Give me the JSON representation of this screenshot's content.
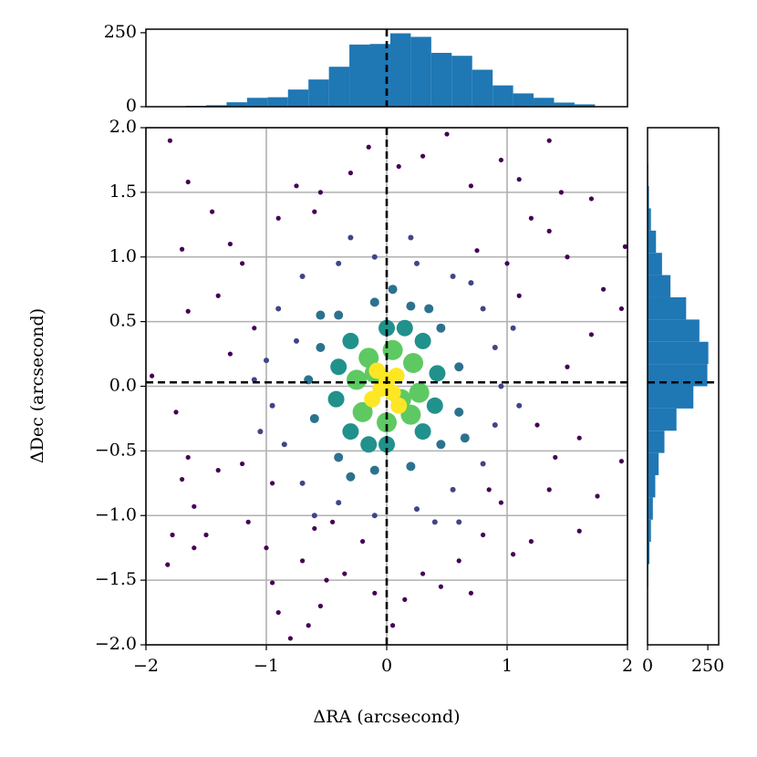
{
  "chart_data": [
    {
      "type": "scatter",
      "xlabel": "ΔRA (arcsecond)",
      "ylabel": "ΔDec (arcsecond)",
      "xlim": [
        -2,
        2
      ],
      "ylim": [
        -2,
        2
      ],
      "grid": true,
      "vline": 0.0,
      "hline": 0.03,
      "xticks": [
        {
          "value": -2,
          "label": "−2"
        },
        {
          "value": -1,
          "label": "−1"
        },
        0,
        1,
        2
      ],
      "yticks": [
        {
          "value": -2,
          "label": "−2.0"
        },
        {
          "value": -1.5,
          "label": "−1.5"
        },
        {
          "value": -1,
          "label": "−1.0"
        },
        {
          "value": -0.5,
          "label": "−0.5"
        },
        {
          "value": 0,
          "label": "0.0"
        },
        0.5,
        {
          "value": 1,
          "label": "1.0"
        },
        1.5,
        {
          "value": 2,
          "label": "2.0"
        }
      ],
      "series": [
        {
          "color": "#440154",
          "size": 2.6,
          "x": [
            -1.8,
            -1.65,
            -1.7,
            -1.45,
            -1.3,
            -1.2,
            -1.4,
            -1.65,
            -1.95,
            -1.75,
            -1.65,
            -1.7,
            -1.6,
            -1.78,
            -1.82,
            -1.6,
            -1.4,
            -1.2,
            -1.15,
            -1.0,
            -0.95,
            -0.9,
            -0.8,
            -0.65,
            -0.55,
            -0.7,
            -0.6,
            -0.5,
            -0.35,
            -0.2,
            -0.1,
            0.05,
            0.15,
            0.3,
            0.45,
            0.6,
            0.7,
            0.8,
            0.95,
            1.05,
            1.2,
            1.35,
            1.6,
            1.75,
            1.95,
            1.6,
            1.4,
            1.25,
            1.5,
            1.7,
            1.95,
            1.8,
            1.5,
            1.35,
            1.7,
            1.45,
            1.35,
            1.1,
            1.2,
            0.95,
            0.7,
            0.5,
            0.3,
            0.1,
            -0.15,
            -0.3,
            -0.55,
            -0.75,
            -0.9,
            -0.6,
            1.98,
            -1.5,
            1.0,
            -1.3,
            1.1,
            -0.95,
            0.85,
            -1.1,
            0.75,
            -0.45
          ],
          "y": [
            1.9,
            1.58,
            1.06,
            1.35,
            1.1,
            0.95,
            0.7,
            0.58,
            0.08,
            -0.2,
            -0.55,
            -0.72,
            -0.93,
            -1.15,
            -1.38,
            -1.25,
            -0.65,
            -0.6,
            -1.05,
            -1.25,
            -1.52,
            -1.75,
            -1.95,
            -1.85,
            -1.7,
            -1.35,
            -1.1,
            -1.5,
            -1.45,
            -1.2,
            -1.6,
            -1.85,
            -1.65,
            -1.45,
            -1.55,
            -1.35,
            -1.6,
            -1.15,
            -0.9,
            -1.3,
            -1.2,
            -0.8,
            -1.12,
            -0.85,
            -0.58,
            -0.4,
            -0.55,
            -0.3,
            0.15,
            0.4,
            0.6,
            0.75,
            1.0,
            1.2,
            1.45,
            1.5,
            1.9,
            1.6,
            1.3,
            1.75,
            1.55,
            1.95,
            1.78,
            1.7,
            1.85,
            1.65,
            1.5,
            1.55,
            1.3,
            1.35,
            1.08,
            -1.15,
            0.95,
            0.25,
            0.7,
            -0.75,
            -0.8,
            0.45,
            1.05,
            -1.05
          ]
        },
        {
          "color": "#414487",
          "size": 3,
          "x": [
            -0.9,
            -0.7,
            -0.4,
            -0.1,
            0.25,
            0.55,
            0.8,
            0.9,
            0.95,
            0.9,
            0.8,
            0.55,
            0.25,
            -0.1,
            -0.4,
            -0.7,
            -0.85,
            -0.95,
            -1.0,
            -0.75,
            0.7,
            -0.6,
            0.4,
            1.05,
            -1.05,
            0.2,
            -0.3,
            1.1,
            -1.1,
            0.6
          ],
          "y": [
            0.6,
            0.85,
            0.95,
            1.0,
            0.95,
            0.85,
            0.6,
            0.3,
            0.0,
            -0.3,
            -0.6,
            -0.8,
            -0.95,
            -1.0,
            -0.9,
            -0.75,
            -0.45,
            -0.15,
            0.2,
            0.35,
            0.8,
            -1.0,
            -1.05,
            0.45,
            -0.35,
            1.15,
            1.15,
            -0.15,
            0.05,
            -1.05
          ]
        },
        {
          "color": "#2c728e",
          "size": 5,
          "x": [
            -0.55,
            -0.4,
            -0.1,
            0.2,
            0.45,
            0.6,
            0.6,
            0.45,
            0.2,
            -0.1,
            -0.4,
            -0.6,
            -0.65,
            0.35,
            -0.3,
            0.65,
            -0.55,
            0.05
          ],
          "y": [
            0.3,
            0.55,
            0.65,
            0.62,
            0.45,
            0.15,
            -0.2,
            -0.45,
            -0.62,
            -0.65,
            -0.55,
            -0.25,
            0.05,
            0.6,
            -0.7,
            -0.4,
            0.55,
            0.75
          ]
        },
        {
          "color": "#21918c",
          "size": 9,
          "x": [
            -0.4,
            -0.3,
            0,
            0.3,
            0.42,
            0.4,
            0.3,
            0,
            -0.3,
            -0.42,
            0.15,
            -0.15
          ],
          "y": [
            0.15,
            0.35,
            0.45,
            0.35,
            0.1,
            -0.15,
            -0.35,
            -0.45,
            -0.35,
            -0.1,
            0.45,
            -0.45
          ]
        },
        {
          "color": "#5ec962",
          "size": 11,
          "x": [
            -0.25,
            -0.15,
            0.05,
            0.22,
            0.27,
            0.2,
            0,
            -0.2,
            -0.1,
            0.12
          ],
          "y": [
            0.05,
            0.22,
            0.28,
            0.18,
            -0.05,
            -0.22,
            -0.28,
            -0.2,
            0.1,
            -0.1
          ]
        },
        {
          "color": "#fde725",
          "size": 9,
          "x": [
            0,
            0.05,
            -0.05,
            0.08,
            -0.08,
            0.1,
            -0.12
          ],
          "y": [
            0.05,
            -0.05,
            -0.02,
            0.08,
            0.12,
            -0.15,
            -0.1
          ]
        }
      ]
    },
    {
      "type": "histogram",
      "orientation": "vertical",
      "color": "#1f77b4",
      "vline": 0.0,
      "bins": [
        -1.67,
        -1.5,
        -1.33,
        -1.16,
        -0.99,
        -0.82,
        -0.65,
        -0.48,
        -0.31,
        -0.14,
        0.03,
        0.2,
        0.37,
        0.54,
        0.71,
        0.88,
        1.05,
        1.22,
        1.39,
        1.56,
        1.73
      ],
      "values": [
        3,
        5,
        15,
        30,
        32,
        58,
        92,
        135,
        210,
        212,
        248,
        236,
        182,
        172,
        125,
        72,
        45,
        30,
        14,
        8
      ],
      "xlim": [
        -2,
        2
      ],
      "ylim": [
        0,
        262
      ],
      "yticks": [
        0,
        250
      ]
    },
    {
      "type": "histogram",
      "orientation": "horizontal",
      "color": "#1f77b4",
      "hline": 0.03,
      "bins": [
        -1.72,
        -1.548,
        -1.376,
        -1.204,
        -1.032,
        -0.86,
        -0.688,
        -0.516,
        -0.344,
        -0.172,
        0,
        0.172,
        0.344,
        0.516,
        0.688,
        0.86,
        1.032,
        1.204,
        1.376,
        1.548,
        1.72
      ],
      "values": [
        2,
        3,
        8,
        14,
        22,
        32,
        46,
        70,
        120,
        190,
        248,
        252,
        215,
        160,
        95,
        60,
        35,
        14,
        6,
        3
      ],
      "ylim": [
        -2,
        2
      ],
      "xlim": [
        0,
        295
      ],
      "xticks": [
        0,
        250
      ]
    }
  ]
}
